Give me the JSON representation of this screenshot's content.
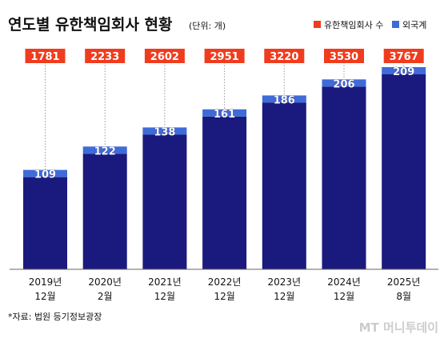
{
  "chart_data": {
    "type": "bar",
    "title": "연도별 유한책임회사 현황",
    "unit_note": "(단위: 개)",
    "categories": [
      [
        "2019년",
        "12월"
      ],
      [
        "2020년",
        "2월"
      ],
      [
        "2021년",
        "12월"
      ],
      [
        "2022년",
        "12월"
      ],
      [
        "2023년",
        "12월"
      ],
      [
        "2024년",
        "12월"
      ],
      [
        "2025년",
        "8월"
      ]
    ],
    "series": [
      {
        "name": "유한책임회사 수",
        "values": [
          1781,
          2233,
          2602,
          2951,
          3220,
          3530,
          3767
        ]
      },
      {
        "name": "외국계",
        "values": [
          109,
          122,
          138,
          161,
          186,
          206,
          209
        ]
      }
    ],
    "legend_position": "top-right",
    "grid": false,
    "source": "*자료: 법원 등기정보광장",
    "watermark": "MT 머니투데이",
    "colors": {
      "total_bar": "#1a1a7e",
      "foreign_bar": "#3f6bd8",
      "total_label_bg": "#f03c1e",
      "legend_total": "#f03c1e",
      "legend_foreign": "#3f6bd8",
      "text": "#111111"
    }
  }
}
